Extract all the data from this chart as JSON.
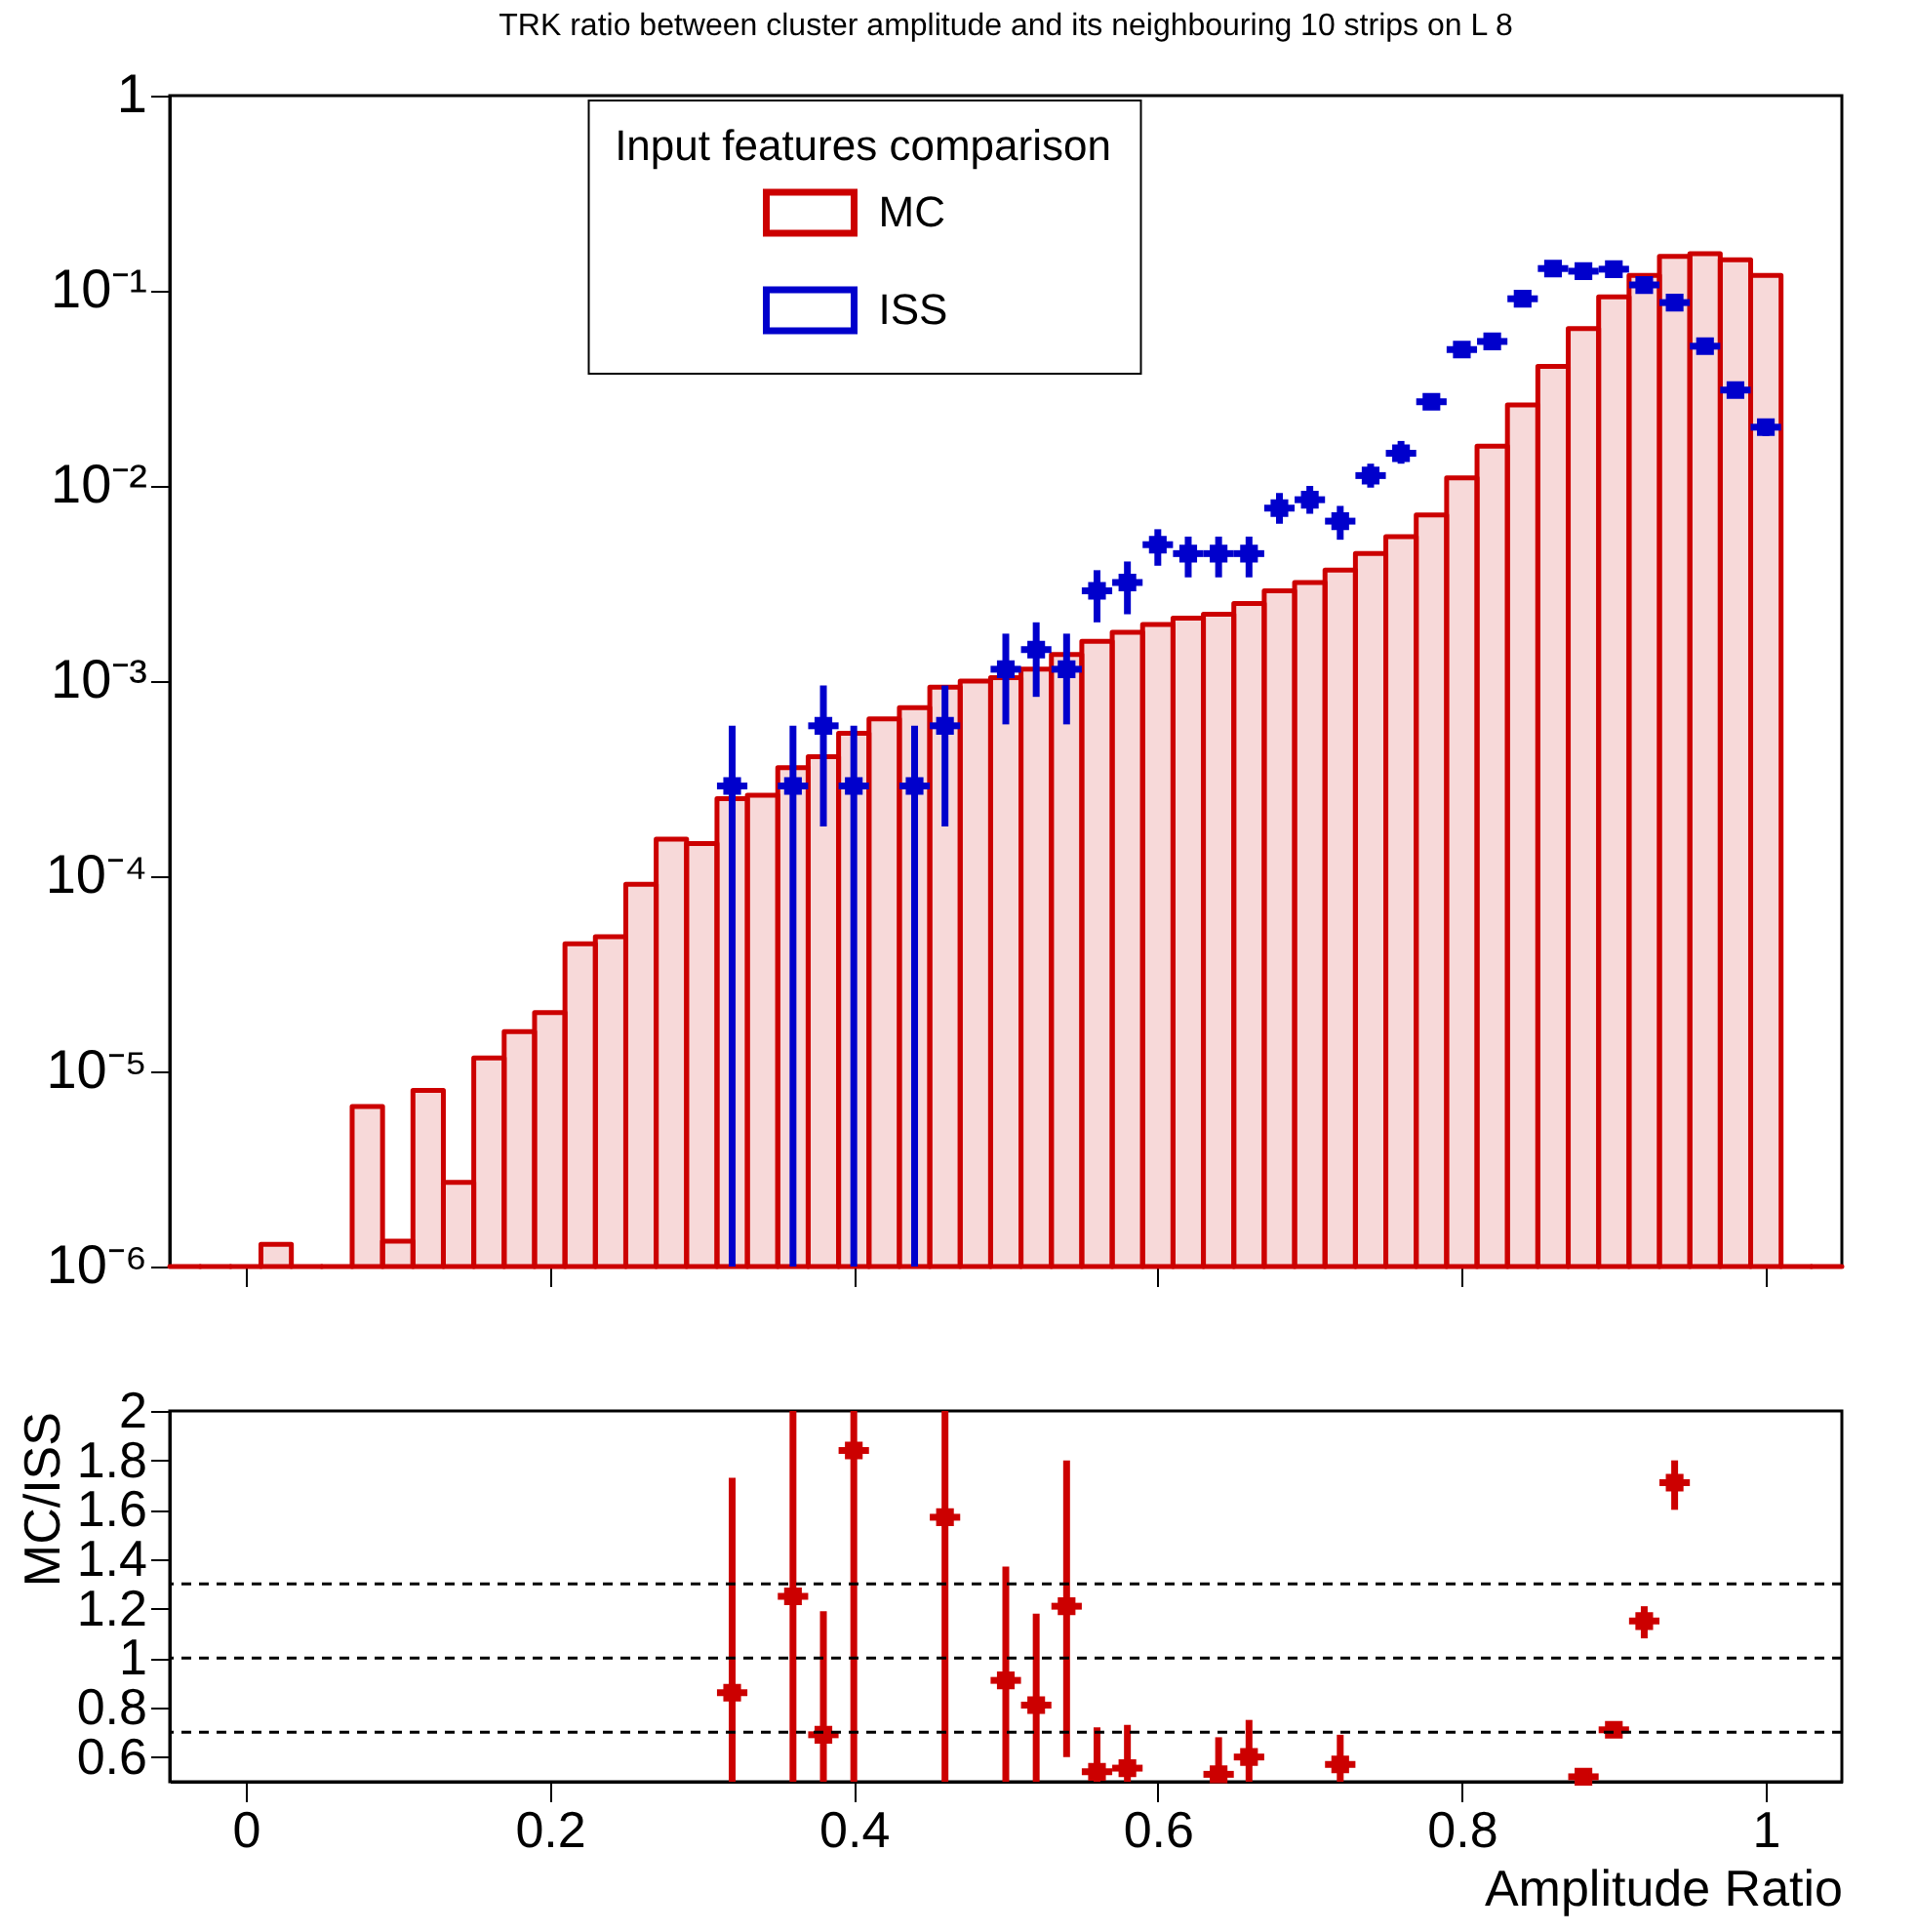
{
  "chart_data": [
    {
      "type": "histogram",
      "title": "TRK ratio between cluster amplitude and its neighbouring 10 strips on L 8",
      "legend_title": "Input features comparison",
      "legend": "top",
      "log": true,
      "tick_labels": "y",
      "marker": "square",
      "bins": [
        -0.05,
        -0.03,
        -0.01,
        0.01,
        0.03,
        0.05,
        0.07,
        0.09,
        0.11,
        0.13,
        0.15,
        0.17,
        0.19,
        0.21,
        0.23,
        0.25,
        0.27,
        0.29,
        0.31,
        0.33,
        0.35,
        0.37,
        0.39,
        0.41,
        0.43,
        0.45,
        0.47,
        0.49,
        0.51,
        0.53,
        0.55,
        0.57,
        0.59,
        0.61,
        0.63,
        0.65,
        0.67,
        0.69,
        0.71,
        0.73,
        0.75,
        0.77,
        0.79,
        0.81,
        0.83,
        0.85,
        0.87,
        0.89,
        0.91,
        0.93,
        0.95,
        0.97,
        0.99,
        1.01,
        1.03,
        1.05
      ],
      "series": [
        {
          "name": "MC",
          "type": "histogram",
          "color": "#cc0000",
          "values": [
            1e-06,
            1e-06,
            1e-06,
            1.3e-06,
            1e-06,
            1e-06,
            6.6e-06,
            1.35e-06,
            8e-06,
            2.7e-06,
            1.17e-05,
            1.6e-05,
            2e-05,
            4.5e-05,
            4.9e-05,
            9.1e-05,
            0.000155,
            0.000147,
            0.00025,
            0.00026,
            0.00036,
            0.00041,
            0.00054,
            0.00064,
            0.00073,
            0.00093,
            0.001,
            0.00104,
            0.00115,
            0.00137,
            0.0016,
            0.00178,
            0.00195,
            0.0021,
            0.0022,
            0.0025,
            0.0029,
            0.0032,
            0.0037,
            0.0045,
            0.0055,
            0.0071,
            0.011,
            0.016,
            0.026,
            0.041,
            0.064,
            0.093,
            0.12,
            0.15,
            0.155,
            0.144,
            0.12,
            1e-06,
            1e-06
          ]
        },
        {
          "name": "ISS",
          "type": "scatter",
          "color": "#0000cc",
          "x": [
            0.32,
            0.36,
            0.38,
            0.4,
            0.44,
            0.46,
            0.5,
            0.52,
            0.54,
            0.56,
            0.58,
            0.6,
            0.62,
            0.64,
            0.66,
            0.68,
            0.7,
            0.72,
            0.74,
            0.76,
            0.78,
            0.8,
            0.82,
            0.84,
            0.86,
            0.88,
            0.9,
            0.92,
            0.94,
            0.96,
            0.98,
            1.0
          ],
          "values": [
            0.00029,
            0.00029,
            0.00059,
            0.00029,
            0.00029,
            0.00059,
            0.00115,
            0.00145,
            0.00115,
            0.0029,
            0.0032,
            0.005,
            0.0045,
            0.0045,
            0.0045,
            0.0077,
            0.0085,
            0.0066,
            0.0113,
            0.0147,
            0.027,
            0.05,
            0.055,
            0.091,
            0.13,
            0.126,
            0.129,
            0.107,
            0.087,
            0.052,
            0.031,
            0.02
          ],
          "errors": [
            [
              1e-06,
              0.00059
            ],
            [
              1e-06,
              0.00059
            ],
            [
              0.00018,
              0.00095
            ],
            [
              1e-06,
              0.00059
            ],
            [
              1e-06,
              0.00059
            ],
            [
              0.00018,
              0.00095
            ],
            [
              0.0006,
              0.00175
            ],
            [
              0.00083,
              0.002
            ],
            [
              0.0006,
              0.00175
            ],
            [
              0.002,
              0.0037
            ],
            [
              0.0022,
              0.0041
            ],
            [
              0.0039,
              0.006
            ],
            [
              0.0034,
              0.0055
            ],
            [
              0.0034,
              0.0055
            ],
            [
              0.0034,
              0.0055
            ],
            [
              0.0064,
              0.0092
            ],
            [
              0.0072,
              0.01
            ],
            [
              0.0053,
              0.0079
            ],
            [
              0.0098,
              0.013
            ],
            [
              0.013,
              0.017
            ],
            [
              0.025,
              0.029
            ],
            null,
            null,
            null,
            null,
            null,
            null,
            null,
            null,
            [
              0.049,
              0.055
            ],
            [
              0.029,
              0.033
            ],
            [
              0.018,
              0.022
            ]
          ],
          "xerrors": [
            0.01,
            0.01,
            0.01,
            0.01,
            0.01,
            0.01,
            0.01,
            0.01,
            0.01,
            0.01,
            0.01,
            0.01,
            0.01,
            0.01,
            0.01,
            0.01,
            0.01,
            0.01,
            0.01,
            0.01,
            0.01,
            0.01,
            0.01,
            0.01,
            0.01,
            0.01,
            0.01,
            0.01,
            0.01,
            0.01,
            0.01,
            0.01
          ]
        }
      ],
      "xlim": [
        -0.05,
        1.05
      ],
      "xticks": [
        0,
        0.2,
        0.4,
        0.6,
        0.8,
        1
      ],
      "ylim": [
        1e-06,
        1
      ],
      "yticks": [
        {
          "value": 1e-06,
          "label": "10⁻⁶"
        },
        {
          "value": 1e-05,
          "label": "10⁻⁵"
        },
        {
          "value": 0.0001,
          "label": "10⁻⁴"
        },
        {
          "value": 0.001,
          "label": "10⁻³"
        },
        {
          "value": 0.01,
          "label": "10⁻²"
        },
        {
          "value": 0.1,
          "label": "10⁻¹"
        },
        1
      ]
    },
    {
      "type": "scatter",
      "xlabel": "Amplitude Ratio",
      "ylabel": "MC/ISS",
      "marker": "square",
      "x": [
        0.32,
        0.36,
        0.38,
        0.4,
        0.46,
        0.5,
        0.52,
        0.54,
        0.56,
        0.58,
        0.64,
        0.66,
        0.72,
        0.88,
        0.9,
        0.92,
        0.94
      ],
      "series": [
        {
          "color": "#cc0000",
          "values": [
            0.86,
            1.25,
            0.69,
            1.84,
            1.57,
            0.91,
            0.81,
            1.21,
            0.54,
            0.555,
            0.53,
            0.6,
            0.57,
            0.52,
            0.71,
            1.15,
            1.71
          ],
          "errors": [
            [
              0.5,
              1.73
            ],
            [
              0.5,
              2
            ],
            [
              0.5,
              1.19
            ],
            [
              0.5,
              2
            ],
            [
              0.5,
              2
            ],
            [
              0.5,
              1.37
            ],
            [
              0.5,
              1.18
            ],
            [
              0.6,
              1.8
            ],
            [
              0.5,
              0.72
            ],
            [
              0.5,
              0.73
            ],
            [
              0.5,
              0.68
            ],
            [
              0.5,
              0.75
            ],
            [
              0.5,
              0.69
            ],
            null,
            null,
            [
              1.08,
              1.21
            ],
            [
              1.6,
              1.8
            ]
          ],
          "xerrors": [
            0.01,
            0.01,
            0.01,
            0.01,
            0.01,
            0.01,
            0.01,
            0.01,
            0.01,
            0.01,
            0.01,
            0.01,
            0.01,
            0.01,
            0.01,
            0.01,
            0.01
          ]
        }
      ],
      "ref_lines": [
        {
          "axis": "y",
          "value": 1.3,
          "color": "#000000",
          "line_style": "dashed"
        },
        {
          "axis": "y",
          "value": 1,
          "color": "#000000",
          "line_style": "dashed"
        },
        {
          "axis": "y",
          "value": 0.7,
          "color": "#000000",
          "line_style": "dashed"
        }
      ],
      "xlim": [
        -0.05,
        1.05
      ],
      "xticks": [
        0,
        0.2,
        0.4,
        0.6,
        0.8,
        1
      ],
      "ylim": [
        0.5,
        2
      ],
      "yticks": [
        0.6,
        0.8,
        1,
        1.2,
        1.4,
        1.6,
        1.8,
        2
      ]
    }
  ]
}
